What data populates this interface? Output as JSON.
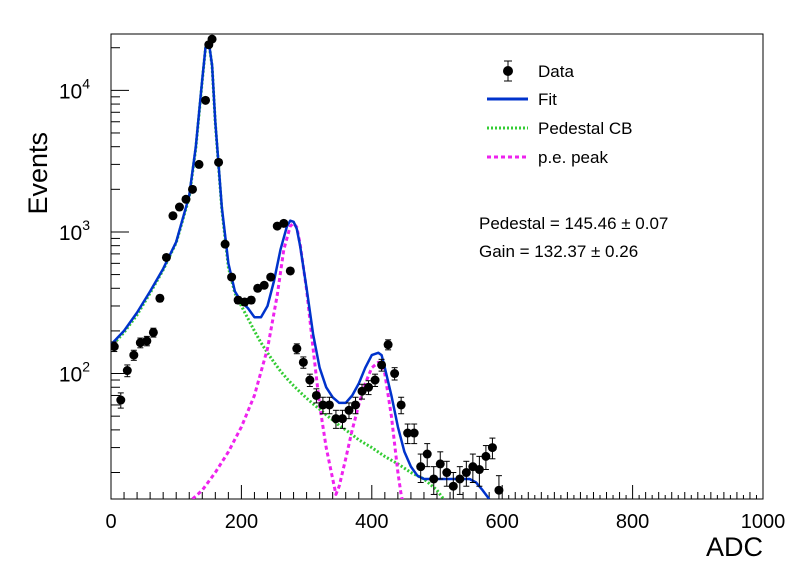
{
  "chart_data": {
    "type": "scatter",
    "xlabel": "ADC",
    "ylabel": "Events",
    "xlim": [
      0,
      1000
    ],
    "ylim": [
      13,
      25000
    ],
    "log_y": true,
    "grid": false,
    "legend_position": "top-right",
    "x_ticks": [
      "0",
      "200",
      "400",
      "600",
      "800",
      "1000"
    ],
    "y_tick_labels": [
      {
        "value": 100,
        "base": "10",
        "exp": "2"
      },
      {
        "value": 1000,
        "base": "10",
        "exp": "3"
      },
      {
        "value": 10000,
        "base": "10",
        "exp": "4"
      }
    ],
    "legend": [
      {
        "label": "Data",
        "style": "marker"
      },
      {
        "label": "Fit",
        "style": "line"
      },
      {
        "label": "Pedestal CB",
        "style": "dotted"
      },
      {
        "label": "p.e. peak",
        "style": "dashed"
      }
    ],
    "annotations": [
      "Pedestal = 145.46 ± 0.07",
      "Gain = 132.37 ± 0.26"
    ],
    "colors": {
      "data": "#000000",
      "fit": "#0033cc",
      "pedestal": "#33cc33",
      "pe": "#ee22ee"
    },
    "series": [
      {
        "name": "Data",
        "kind": "points",
        "x": [
          5,
          15,
          25,
          35,
          45,
          55,
          65,
          75,
          85,
          95,
          105,
          115,
          125,
          135,
          145,
          150,
          155,
          165,
          175,
          185,
          195,
          205,
          215,
          225,
          235,
          245,
          255,
          265,
          275,
          285,
          295,
          305,
          315,
          325,
          335,
          345,
          355,
          365,
          375,
          385,
          395,
          405,
          415,
          425,
          435,
          445,
          455,
          465,
          475,
          485,
          495,
          505,
          515,
          525,
          535,
          545,
          555,
          565,
          575,
          585,
          595
        ],
        "y": [
          155,
          65,
          105,
          135,
          165,
          170,
          195,
          340,
          660,
          1300,
          1500,
          1700,
          2000,
          3000,
          8500,
          21000,
          23000,
          3100,
          820,
          480,
          330,
          320,
          330,
          400,
          420,
          480,
          1100,
          1150,
          530,
          150,
          120,
          90,
          70,
          60,
          60,
          48,
          48,
          55,
          60,
          75,
          80,
          90,
          115,
          160,
          100,
          60,
          38,
          38,
          22,
          27,
          18,
          23,
          20,
          16,
          18,
          20,
          22,
          21,
          26,
          30,
          15
        ],
        "yerr": [
          12,
          8,
          10,
          11,
          13,
          13,
          14,
          18,
          26,
          36,
          39,
          41,
          45,
          55,
          92,
          145,
          152,
          56,
          29,
          22,
          18,
          18,
          18,
          20,
          20,
          22,
          33,
          34,
          23,
          12,
          11,
          9,
          8,
          8,
          8,
          7,
          7,
          7,
          8,
          9,
          9,
          9,
          11,
          13,
          10,
          8,
          6,
          6,
          5,
          5,
          4,
          5,
          4,
          4,
          4,
          4,
          5,
          5,
          5,
          5,
          4
        ]
      },
      {
        "name": "Fit",
        "kind": "line",
        "x": [
          0,
          20,
          40,
          60,
          80,
          100,
          120,
          130,
          140,
          145,
          150,
          155,
          160,
          170,
          180,
          190,
          200,
          210,
          220,
          230,
          240,
          250,
          260,
          270,
          275,
          280,
          285,
          290,
          300,
          310,
          320,
          330,
          340,
          350,
          360,
          370,
          380,
          390,
          400,
          410,
          415,
          420,
          430,
          440,
          450,
          460,
          470,
          480,
          490,
          500,
          510,
          520,
          530,
          540,
          550,
          560,
          570,
          580
        ],
        "y": [
          160,
          200,
          270,
          380,
          550,
          850,
          1800,
          4000,
          12000,
          20000,
          22000,
          15000,
          6000,
          1500,
          600,
          380,
          320,
          290,
          250,
          250,
          300,
          450,
          750,
          1100,
          1200,
          1180,
          1050,
          800,
          400,
          190,
          110,
          80,
          68,
          62,
          62,
          70,
          85,
          110,
          135,
          140,
          135,
          110,
          70,
          42,
          28,
          22,
          19,
          18,
          18,
          18,
          18,
          18,
          18,
          18,
          18,
          17,
          15,
          13
        ]
      },
      {
        "name": "Pedestal CB",
        "kind": "dotted",
        "x": [
          0,
          20,
          40,
          60,
          80,
          100,
          120,
          130,
          140,
          145,
          150,
          155,
          160,
          170,
          180,
          190,
          200,
          210,
          220,
          230,
          240,
          250,
          260,
          270,
          280,
          290,
          300,
          310,
          320,
          330,
          340,
          350,
          360,
          370,
          380,
          400,
          420,
          440,
          460,
          480,
          500,
          510
        ],
        "y": [
          155,
          195,
          260,
          370,
          540,
          840,
          1750,
          3900,
          11800,
          19800,
          21800,
          14800,
          5900,
          1450,
          560,
          370,
          300,
          245,
          200,
          165,
          140,
          120,
          104,
          92,
          82,
          74,
          67,
          61,
          56,
          51,
          47,
          43,
          40,
          37,
          34,
          30,
          26,
          23,
          20,
          18,
          15,
          13
        ]
      },
      {
        "name": "p.e. peak",
        "kind": "dashed",
        "x": [
          125,
          140,
          160,
          180,
          200,
          220,
          240,
          255,
          265,
          275,
          280,
          285,
          290,
          300,
          310,
          320,
          330,
          340,
          345,
          350,
          360,
          370,
          380,
          390,
          400,
          410,
          415,
          420,
          430,
          440,
          445,
          450
        ],
        "y": [
          13,
          15,
          20,
          28,
          42,
          70,
          150,
          360,
          750,
          1100,
          1150,
          1080,
          820,
          390,
          150,
          60,
          30,
          18,
          14,
          16,
          25,
          40,
          60,
          85,
          110,
          120,
          118,
          100,
          50,
          20,
          14,
          11
        ]
      }
    ]
  }
}
